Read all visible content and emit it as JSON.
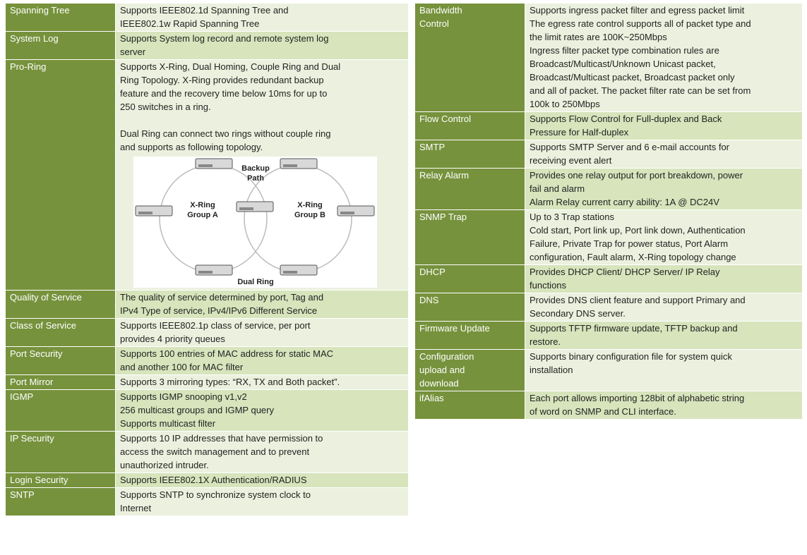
{
  "left_table": {
    "rows": [
      {
        "label": [
          "Spanning Tree"
        ],
        "description": [
          [
            "Supports IEEE802.1d Spanning Tree and",
            "IEEE802.1w Rapid Spanning Tree"
          ]
        ]
      },
      {
        "label": [
          "System Log"
        ],
        "description": [
          [
            "Supports System log record and remote system log",
            "server"
          ]
        ]
      },
      {
        "label": [
          "Pro-Ring"
        ],
        "description": [
          [
            "Supports X-Ring, Dual Homing, Couple Ring and Dual",
            "Ring Topology. X-Ring provides redundant backup",
            "feature and the recovery time below 10ms for up to",
            "250 switches in a ring."
          ],
          [
            "Dual Ring can connect two rings without couple ring",
            "and supports as following topology."
          ]
        ],
        "diagram": {
          "backup_path": [
            "Backup",
            "Path"
          ],
          "group_a": [
            "X-Ring",
            "Group A"
          ],
          "group_b": [
            "X-Ring",
            "Group B"
          ],
          "caption": "Dual Ring"
        }
      },
      {
        "label": [
          "Quality of Service"
        ],
        "description": [
          [
            "The quality of service determined by port, Tag and",
            "IPv4 Type of service, IPv4/IPv6 Different Service"
          ]
        ]
      },
      {
        "label": [
          "Class of Service"
        ],
        "description": [
          [
            "Supports IEEE802.1p class of service, per port",
            "provides 4 priority queues"
          ]
        ]
      },
      {
        "label": [
          "Port Security"
        ],
        "description": [
          [
            "Supports 100 entries of MAC address for static MAC",
            "and another 100 for MAC filter"
          ]
        ]
      },
      {
        "label": [
          "Port Mirror"
        ],
        "description": [
          [
            "Supports 3 mirroring types: “RX, TX and Both packet”."
          ]
        ]
      },
      {
        "label": [
          "IGMP"
        ],
        "description": [
          [
            "Supports IGMP snooping v1,v2",
            "256 multicast groups and IGMP query",
            "Supports multicast filter"
          ]
        ]
      },
      {
        "label": [
          "IP Security"
        ],
        "description": [
          [
            "Supports 10 IP addresses that have permission to",
            "access the switch management and to prevent",
            "unauthorized intruder."
          ]
        ]
      },
      {
        "label": [
          "Login Security"
        ],
        "description": [
          [
            "Supports IEEE802.1X Authentication/RADIUS"
          ]
        ]
      },
      {
        "label": [
          "SNTP"
        ],
        "description": [
          [
            "Supports SNTP to synchronize system clock to",
            "Internet"
          ]
        ]
      }
    ]
  },
  "right_table": {
    "rows": [
      {
        "label": [
          "Bandwidth",
          "Control"
        ],
        "description": [
          [
            "Supports ingress packet filter and egress packet limit",
            "The egress rate control supports all of packet type and",
            "the limit rates are 100K~250Mbps",
            "Ingress filter packet type combination rules are",
            "Broadcast/Multicast/Unknown Unicast packet,",
            "Broadcast/Multicast packet, Broadcast packet only",
            "and all of packet. The packet filter rate can be set from",
            "100k to 250Mbps"
          ]
        ]
      },
      {
        "label": [
          "Flow Control"
        ],
        "description": [
          [
            "Supports Flow Control for Full-duplex and Back",
            "Pressure for Half-duplex"
          ]
        ]
      },
      {
        "label": [
          "SMTP"
        ],
        "description": [
          [
            "Supports SMTP Server and 6 e-mail accounts for",
            "receiving event alert"
          ]
        ]
      },
      {
        "label": [
          "Relay Alarm"
        ],
        "description": [
          [
            "Provides one relay output for port breakdown, power",
            "fail and alarm",
            "Alarm Relay current carry ability: 1A @ DC24V"
          ]
        ]
      },
      {
        "label": [
          "SNMP Trap"
        ],
        "description": [
          [
            "Up to 3 Trap stations",
            "Cold start, Port link up, Port link down, Authentication",
            "Failure, Private Trap for power status, Port Alarm",
            "configuration, Fault alarm, X-Ring topology change"
          ]
        ]
      },
      {
        "label": [
          "DHCP"
        ],
        "description": [
          [
            "Provides DHCP Client/ DHCP Server/ IP Relay",
            "functions"
          ]
        ]
      },
      {
        "label": [
          "DNS"
        ],
        "description": [
          [
            "Provides DNS client feature and support Primary and",
            "Secondary DNS server."
          ]
        ]
      },
      {
        "label": [
          "Firmware Update"
        ],
        "description": [
          [
            "Supports TFTP firmware update, TFTP backup and",
            "restore."
          ]
        ]
      },
      {
        "label": [
          "Configuration",
          "upload and",
          "download"
        ],
        "description": [
          [
            "Supports binary configuration file for system quick",
            "installation"
          ]
        ]
      },
      {
        "label": [
          "ifAlias"
        ],
        "description": [
          [
            "Each port allows importing 128bit of alphabetic string",
            "of word on SNMP and CLI interface."
          ]
        ]
      }
    ]
  }
}
